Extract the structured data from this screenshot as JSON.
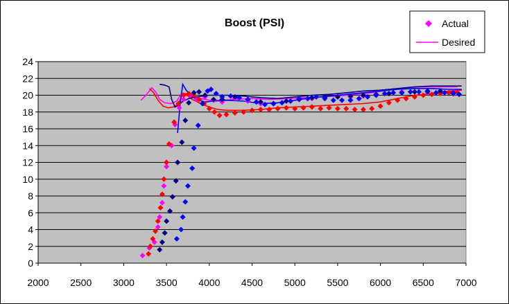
{
  "chart_data": {
    "type": "scatter",
    "title": "Boost (PSI)",
    "xlabel": "",
    "ylabel": "",
    "xlim": [
      2000,
      7000
    ],
    "ylim": [
      0,
      24
    ],
    "x_ticks": [
      2000,
      2500,
      3000,
      3500,
      4000,
      4500,
      5000,
      5500,
      6000,
      6500,
      7000
    ],
    "y_ticks": [
      0,
      2,
      4,
      6,
      8,
      10,
      12,
      14,
      16,
      18,
      20,
      22,
      24
    ],
    "grid": true,
    "plot_background": "#c0c0c0",
    "legend_position": "top-right",
    "legend": [
      {
        "label": "Actual",
        "style": "marker",
        "color": "#ff00ff"
      },
      {
        "label": "Desired",
        "style": "line",
        "color": "#ff00ff"
      }
    ],
    "series": [
      {
        "name": "Actual",
        "kind": "marker",
        "color": "#ff00ff",
        "points": [
          [
            3220,
            0.9
          ],
          [
            3300,
            1.8
          ],
          [
            3360,
            2.5
          ],
          [
            3400,
            4.3
          ],
          [
            3420,
            5.5
          ],
          [
            3450,
            7.2
          ],
          [
            3470,
            9.2
          ],
          [
            3500,
            11.5
          ],
          [
            3560,
            14.0
          ],
          [
            3600,
            16.5
          ],
          [
            3650,
            18.5
          ],
          [
            3700,
            19.5
          ],
          [
            3780,
            20.0
          ],
          [
            3850,
            19.5
          ],
          [
            3950,
            19.8
          ],
          [
            4050,
            19.4
          ],
          [
            4150,
            19.2
          ],
          [
            4300,
            19.6
          ],
          [
            4450,
            19.3
          ],
          [
            4600,
            19.0
          ],
          [
            4750,
            19.0
          ],
          [
            4900,
            19.3
          ],
          [
            5050,
            19.5
          ],
          [
            5200,
            19.6
          ],
          [
            5350,
            19.7
          ],
          [
            5500,
            19.8
          ],
          [
            5650,
            19.8
          ],
          [
            5800,
            19.9
          ],
          [
            5950,
            20.0
          ],
          [
            6100,
            20.2
          ],
          [
            6250,
            20.4
          ],
          [
            6400,
            20.4
          ],
          [
            6550,
            20.5
          ],
          [
            6700,
            20.5
          ],
          [
            6850,
            20.4
          ]
        ]
      },
      {
        "name": "",
        "kind": "marker",
        "color": "#ff0000",
        "points": [
          [
            3290,
            1.1
          ],
          [
            3310,
            2.0
          ],
          [
            3340,
            2.9
          ],
          [
            3370,
            3.8
          ],
          [
            3400,
            5.0
          ],
          [
            3430,
            6.6
          ],
          [
            3450,
            8.2
          ],
          [
            3470,
            10.0
          ],
          [
            3500,
            12.0
          ],
          [
            3530,
            14.2
          ],
          [
            3590,
            16.8
          ],
          [
            3640,
            19.0
          ],
          [
            3700,
            20.0
          ],
          [
            3760,
            20.2
          ],
          [
            3820,
            20.0
          ],
          [
            3880,
            19.5
          ],
          [
            3940,
            19.0
          ],
          [
            4000,
            18.4
          ],
          [
            4060,
            18.0
          ],
          [
            4120,
            17.6
          ],
          [
            4200,
            17.7
          ],
          [
            4300,
            17.9
          ],
          [
            4400,
            18.0
          ],
          [
            4500,
            18.2
          ],
          [
            4600,
            18.3
          ],
          [
            4700,
            18.3
          ],
          [
            4800,
            18.4
          ],
          [
            4900,
            18.5
          ],
          [
            5000,
            18.4
          ],
          [
            5100,
            18.5
          ],
          [
            5200,
            18.6
          ],
          [
            5300,
            18.4
          ],
          [
            5400,
            18.5
          ],
          [
            5500,
            18.4
          ],
          [
            5600,
            18.4
          ],
          [
            5700,
            18.3
          ],
          [
            5800,
            18.3
          ],
          [
            5900,
            18.4
          ],
          [
            6000,
            18.7
          ],
          [
            6100,
            19.1
          ],
          [
            6200,
            19.4
          ],
          [
            6300,
            19.6
          ],
          [
            6400,
            19.8
          ],
          [
            6500,
            20.0
          ],
          [
            6600,
            20.1
          ],
          [
            6700,
            20.2
          ],
          [
            6800,
            20.3
          ],
          [
            6900,
            20.3
          ]
        ]
      },
      {
        "name": "",
        "kind": "marker",
        "color": "#000080",
        "points": [
          [
            3420,
            1.6
          ],
          [
            3450,
            2.5
          ],
          [
            3480,
            3.6
          ],
          [
            3500,
            5.0
          ],
          [
            3540,
            6.2
          ],
          [
            3570,
            7.9
          ],
          [
            3610,
            9.8
          ],
          [
            3630,
            12.0
          ],
          [
            3680,
            14.4
          ],
          [
            3720,
            17.0
          ],
          [
            3760,
            19.1
          ],
          [
            3820,
            20.3
          ],
          [
            3880,
            20.4
          ],
          [
            3950,
            20.0
          ],
          [
            4050,
            19.5
          ],
          [
            4150,
            19.5
          ],
          [
            4300,
            19.8
          ],
          [
            4450,
            19.5
          ],
          [
            4600,
            19.2
          ],
          [
            4750,
            19.0
          ],
          [
            4900,
            19.3
          ],
          [
            5050,
            19.5
          ],
          [
            5200,
            19.7
          ],
          [
            5350,
            19.8
          ],
          [
            5500,
            19.8
          ],
          [
            5650,
            19.9
          ],
          [
            5800,
            20.0
          ],
          [
            5950,
            20.1
          ],
          [
            6100,
            20.2
          ],
          [
            6250,
            20.3
          ],
          [
            6400,
            20.4
          ],
          [
            6550,
            20.5
          ],
          [
            6700,
            20.5
          ],
          [
            6850,
            20.3
          ]
        ]
      },
      {
        "name": "",
        "kind": "marker",
        "color": "#0000ff",
        "points": [
          [
            3620,
            2.9
          ],
          [
            3670,
            4.0
          ],
          [
            3690,
            5.5
          ],
          [
            3720,
            7.3
          ],
          [
            3750,
            9.2
          ],
          [
            3800,
            11.3
          ],
          [
            3820,
            13.7
          ],
          [
            3870,
            16.4
          ],
          [
            3920,
            19.0
          ],
          [
            3980,
            20.5
          ],
          [
            4020,
            20.7
          ],
          [
            4080,
            20.2
          ],
          [
            4150,
            19.8
          ],
          [
            4250,
            19.9
          ],
          [
            4350,
            19.7
          ],
          [
            4450,
            19.5
          ],
          [
            4550,
            19.2
          ],
          [
            4650,
            18.9
          ],
          [
            4750,
            19.0
          ],
          [
            4850,
            19.1
          ],
          [
            4950,
            19.3
          ],
          [
            5050,
            19.6
          ],
          [
            5150,
            19.6
          ],
          [
            5250,
            19.8
          ],
          [
            5350,
            19.6
          ],
          [
            5450,
            19.4
          ],
          [
            5550,
            19.4
          ],
          [
            5650,
            19.4
          ],
          [
            5750,
            19.6
          ],
          [
            5850,
            19.8
          ],
          [
            5950,
            20.0
          ],
          [
            6050,
            20.2
          ],
          [
            6150,
            20.3
          ],
          [
            6250,
            20.3
          ],
          [
            6350,
            20.4
          ],
          [
            6450,
            20.4
          ],
          [
            6550,
            20.4
          ],
          [
            6650,
            20.3
          ],
          [
            6750,
            20.3
          ],
          [
            6850,
            20.2
          ],
          [
            6920,
            20.1
          ]
        ]
      },
      {
        "name": "Desired",
        "kind": "line",
        "color": "#ff00ff",
        "points": [
          [
            3200,
            19.4
          ],
          [
            3260,
            20.0
          ],
          [
            3330,
            20.9
          ],
          [
            3380,
            20.3
          ],
          [
            3420,
            19.5
          ],
          [
            3480,
            19.1
          ],
          [
            3550,
            19.0
          ],
          [
            3620,
            19.3
          ],
          [
            3680,
            20.3
          ],
          [
            3720,
            20.0
          ],
          [
            3800,
            19.8
          ],
          [
            3900,
            19.6
          ],
          [
            4000,
            19.4
          ],
          [
            4150,
            19.4
          ],
          [
            4300,
            19.5
          ],
          [
            4500,
            19.6
          ],
          [
            4700,
            19.5
          ],
          [
            4900,
            19.6
          ],
          [
            5100,
            19.7
          ],
          [
            5300,
            19.8
          ],
          [
            5500,
            19.9
          ],
          [
            5700,
            20.1
          ],
          [
            5900,
            20.3
          ],
          [
            6100,
            20.6
          ],
          [
            6300,
            20.9
          ],
          [
            6500,
            21.0
          ],
          [
            6700,
            21.0
          ],
          [
            6900,
            21.0
          ]
        ]
      },
      {
        "name": "",
        "kind": "line",
        "color": "#ff0000",
        "points": [
          [
            3300,
            20.8
          ],
          [
            3350,
            20.3
          ],
          [
            3400,
            19.4
          ],
          [
            3460,
            18.7
          ],
          [
            3520,
            18.5
          ],
          [
            3580,
            18.6
          ],
          [
            3640,
            19.0
          ],
          [
            3680,
            20.0
          ],
          [
            3720,
            20.2
          ],
          [
            3800,
            19.5
          ],
          [
            3900,
            19.0
          ],
          [
            4000,
            18.6
          ],
          [
            4100,
            18.3
          ],
          [
            4200,
            18.2
          ],
          [
            4400,
            18.2
          ],
          [
            4600,
            18.3
          ],
          [
            4800,
            18.5
          ],
          [
            5000,
            18.6
          ],
          [
            5200,
            18.7
          ],
          [
            5400,
            18.8
          ],
          [
            5600,
            18.9
          ],
          [
            5800,
            19.0
          ],
          [
            6000,
            19.2
          ],
          [
            6200,
            19.6
          ],
          [
            6400,
            20.0
          ],
          [
            6600,
            20.2
          ],
          [
            6800,
            20.5
          ],
          [
            6950,
            20.6
          ]
        ]
      },
      {
        "name": "",
        "kind": "line",
        "color": "#000080",
        "points": [
          [
            3420,
            21.3
          ],
          [
            3480,
            21.2
          ],
          [
            3530,
            21.0
          ],
          [
            3560,
            19.5
          ],
          [
            3600,
            18.6
          ],
          [
            3640,
            18.8
          ],
          [
            3680,
            19.2
          ],
          [
            3760,
            19.6
          ],
          [
            3850,
            19.8
          ],
          [
            4000,
            20.0
          ],
          [
            4200,
            20.0
          ],
          [
            4400,
            19.9
          ],
          [
            4600,
            19.7
          ],
          [
            4800,
            19.6
          ],
          [
            5000,
            19.8
          ],
          [
            5200,
            20.0
          ],
          [
            5400,
            20.1
          ],
          [
            5600,
            20.3
          ],
          [
            5800,
            20.5
          ],
          [
            6000,
            20.6
          ],
          [
            6200,
            20.8
          ],
          [
            6400,
            21.0
          ],
          [
            6600,
            21.1
          ],
          [
            6800,
            21.1
          ],
          [
            6950,
            21.1
          ]
        ]
      },
      {
        "name": "",
        "kind": "line",
        "color": "#0000ff",
        "points": [
          [
            3630,
            15.5
          ],
          [
            3660,
            19.0
          ],
          [
            3690,
            21.3
          ],
          [
            3730,
            20.6
          ],
          [
            3800,
            19.8
          ],
          [
            3880,
            19.4
          ],
          [
            3950,
            19.2
          ],
          [
            4050,
            19.3
          ],
          [
            4200,
            19.4
          ],
          [
            4400,
            19.3
          ],
          [
            4600,
            19.0
          ],
          [
            4800,
            19.1
          ],
          [
            5000,
            19.4
          ],
          [
            5200,
            19.7
          ],
          [
            5400,
            19.9
          ],
          [
            5600,
            20.1
          ],
          [
            5800,
            20.3
          ],
          [
            6000,
            20.5
          ],
          [
            6200,
            20.7
          ],
          [
            6400,
            20.8
          ],
          [
            6600,
            20.8
          ],
          [
            6800,
            20.7
          ],
          [
            6950,
            20.7
          ]
        ]
      }
    ]
  }
}
